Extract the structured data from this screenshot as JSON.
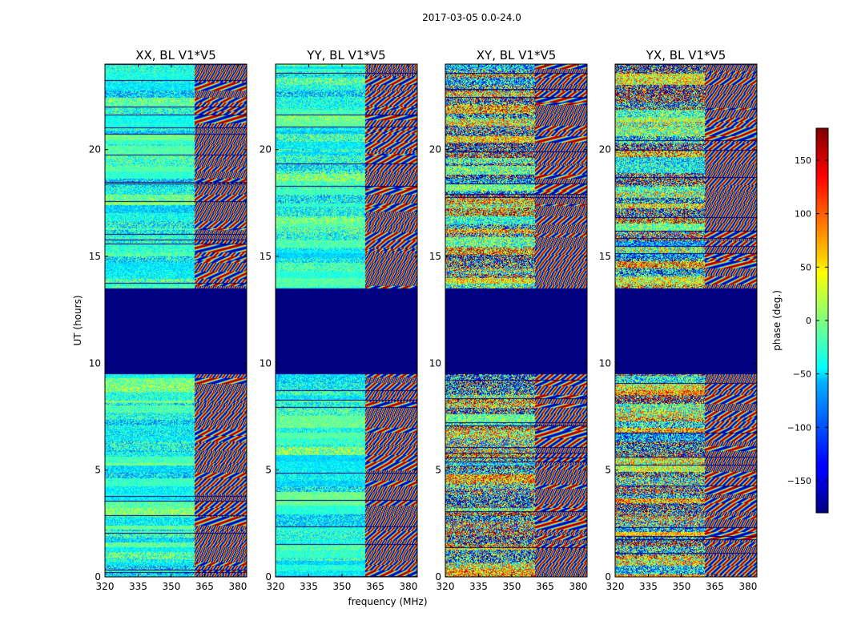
{
  "figure": {
    "suptitle": "2017-03-05 0.0-24.0",
    "xlabel": "frequency (MHz)",
    "ylabel": "UT (hours)"
  },
  "colorbar": {
    "label": "phase (deg.)",
    "range": [
      -180,
      180
    ],
    "ticks": [
      -150,
      -100,
      -50,
      0,
      50,
      100,
      150
    ],
    "tick_labels": [
      "−150",
      "−100",
      "−50",
      "0",
      "50",
      "100",
      "150"
    ],
    "colormap": "jet",
    "low_color": "#00007f",
    "high_color": "#7f0000"
  },
  "chart_data": {
    "type": "heatmap",
    "panels": [
      {
        "title": "XX, BL V1*V5"
      },
      {
        "title": "YY, BL V1*V5"
      },
      {
        "title": "XY, BL V1*V5"
      },
      {
        "title": "YX, BL V1*V5"
      }
    ],
    "xlim": [
      320,
      384
    ],
    "ylim": [
      0,
      24
    ],
    "x_ticks": [
      320,
      335,
      350,
      365,
      380
    ],
    "y_ticks": [
      0,
      5,
      10,
      15,
      20
    ],
    "flagged_interval_ut": [
      9.5,
      13.5
    ],
    "flagged_value": -180,
    "z_label": "phase (deg.)",
    "z_range": [
      -180,
      180
    ]
  }
}
